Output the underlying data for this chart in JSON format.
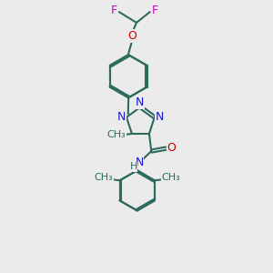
{
  "background_color": "#ebebeb",
  "bond_color": "#2d6b5e",
  "bond_width": 1.5,
  "N_color": "#1a1acc",
  "O_color": "#cc0000",
  "F_color": "#cc00cc",
  "font_size": 9,
  "figsize": [
    3.0,
    3.0
  ],
  "dpi": 100,
  "xlim": [
    0,
    10
  ],
  "ylim": [
    0,
    10
  ]
}
